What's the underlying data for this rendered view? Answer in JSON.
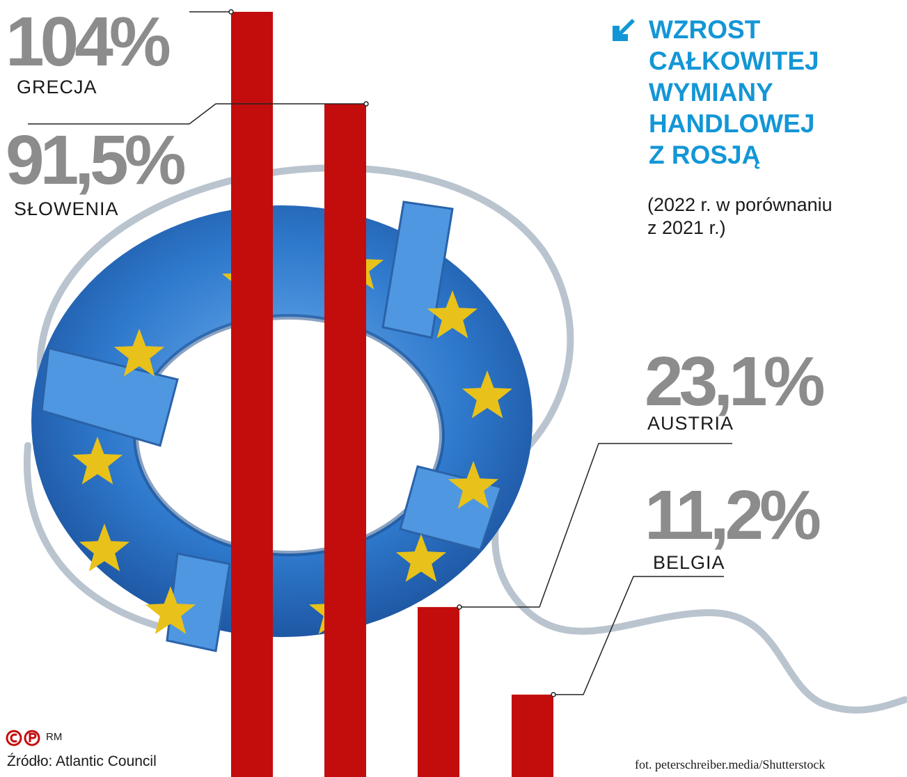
{
  "title_lines": [
    "WZROST",
    "CAŁKOWITEJ",
    "WYMIANY",
    "HANDLOWEJ",
    "Z ROSJĄ"
  ],
  "subtitle_lines": [
    "(2022 r. w porównaniu",
    "z 2021 r.)"
  ],
  "source": "Źródło: Atlantic Council",
  "photo_credit": "fot. peterschreiber.media/Shutterstock",
  "author": "RM",
  "colors": {
    "bar": "#c30d0d",
    "title": "#1396d6",
    "value": "#8c8c8c",
    "ring": "#2a6fc4",
    "star": "#e8c21a"
  },
  "icons": [
    "arrow-down-left-icon",
    "lifebuoy-eu-illustration",
    "copyright-logo-icon"
  ],
  "chart_data": {
    "type": "bar",
    "categories": [
      "GRECJA",
      "SŁOWENIA",
      "AUSTRIA",
      "BELGIA"
    ],
    "values": [
      104,
      91.5,
      23.1,
      11.2
    ],
    "value_labels": [
      "104%",
      "91,5%",
      "23,1%",
      "11,2%"
    ],
    "ylim": [
      0,
      104
    ],
    "grid": false,
    "legend": "none"
  }
}
